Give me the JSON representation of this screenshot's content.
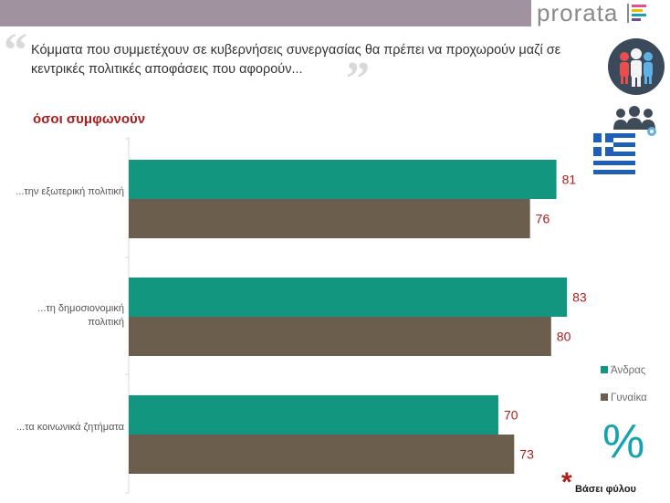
{
  "brand": {
    "name": "prorata",
    "stripe_colors": [
      "#e84e8a",
      "#f5b800",
      "#17a2b0",
      "#6c4d9c"
    ]
  },
  "header": {
    "question": "Κόμματα που συμμετέχουν σε κυβερνήσεις συνεργασίας θα πρέπει να προχωρούν μαζί σε κεντρικές πολιτικές αποφάσεις που αφορούν...",
    "quote_open": "“",
    "quote_close": "”",
    "subtitle": "όσοι συμφωνούν"
  },
  "icons": {
    "people": "people-group-icon",
    "group": "users-gear-icon",
    "flag": "greek-flag-icon",
    "percent": "%"
  },
  "footnote": {
    "asterisk": "*",
    "text": "Βάσει φύλου"
  },
  "colors": {
    "men": "#12967f",
    "women": "#6b5e4d",
    "value_label": "#b01c1c",
    "accent_red": "#b01c1c",
    "icon_teal": "#17a2b0"
  },
  "chart_data": {
    "type": "bar",
    "orientation": "horizontal",
    "categories": [
      "...την εξωτερική πολιτική",
      "...τη δημοσιονομική πολιτική",
      "...τα κοινωνικά ζητήματα"
    ],
    "series": [
      {
        "name": "Άνδρας",
        "values": [
          81,
          83,
          70
        ]
      },
      {
        "name": "Γυναίκα",
        "values": [
          76,
          80,
          73
        ]
      }
    ],
    "xlim": [
      0,
      100
    ],
    "grid": false,
    "legend_position": "right"
  }
}
